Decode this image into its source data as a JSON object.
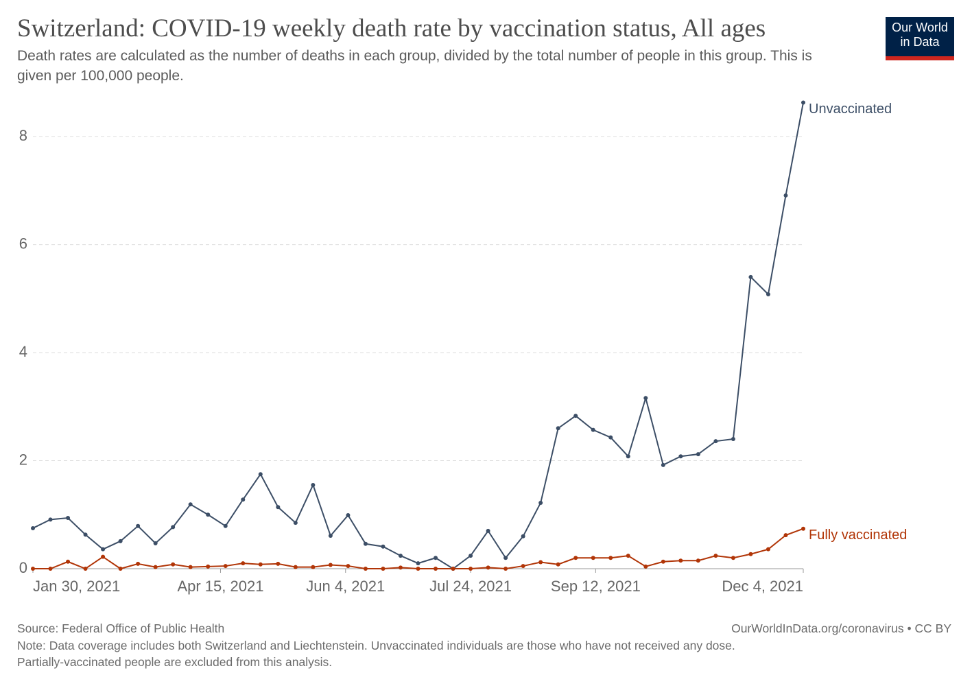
{
  "chart_data": {
    "type": "line",
    "title": "Switzerland: COVID-19 weekly death rate by vaccination status, All ages",
    "subtitle": "Death rates are calculated as the number of deaths in each group, divided by the total number of people in this group. This is given per 100,000 people.",
    "logo": [
      "Our World",
      "in Data"
    ],
    "source": "Source: Federal Office of Public Health",
    "credit": "OurWorldInData.org/coronavirus • CC BY",
    "note": [
      "Note: Data coverage includes both Switzerland and Liechtenstein. Unvaccinated individuals are those who have not received any dose.",
      "Partially-vaccinated people are excluded from this analysis."
    ],
    "x": [
      "2021-01-30",
      "2021-02-06",
      "2021-02-13",
      "2021-02-20",
      "2021-02-27",
      "2021-03-06",
      "2021-03-13",
      "2021-03-20",
      "2021-03-27",
      "2021-04-03",
      "2021-04-10",
      "2021-04-17",
      "2021-04-24",
      "2021-05-01",
      "2021-05-08",
      "2021-05-15",
      "2021-05-22",
      "2021-05-29",
      "2021-06-05",
      "2021-06-12",
      "2021-06-19",
      "2021-06-26",
      "2021-07-03",
      "2021-07-10",
      "2021-07-17",
      "2021-07-24",
      "2021-07-31",
      "2021-08-07",
      "2021-08-14",
      "2021-08-21",
      "2021-08-28",
      "2021-09-04",
      "2021-09-11",
      "2021-09-18",
      "2021-09-25",
      "2021-10-02",
      "2021-10-09",
      "2021-10-16",
      "2021-10-23",
      "2021-10-30",
      "2021-11-06",
      "2021-11-13",
      "2021-11-20",
      "2021-11-27",
      "2021-12-04"
    ],
    "xlim": [
      "2021-01-30",
      "2021-12-04"
    ],
    "xticks": [
      {
        "value": "2021-01-30",
        "label": "Jan 30, 2021"
      },
      {
        "value": "2021-04-15",
        "label": "Apr 15, 2021"
      },
      {
        "value": "2021-06-04",
        "label": "Jun 4, 2021"
      },
      {
        "value": "2021-07-24",
        "label": "Jul 24, 2021"
      },
      {
        "value": "2021-09-12",
        "label": "Sep 12, 2021"
      },
      {
        "value": "2021-12-04",
        "label": "Dec 4, 2021"
      }
    ],
    "ylim": [
      0,
      8.7
    ],
    "yticks": [
      0,
      2,
      4,
      6,
      8
    ],
    "grid": true,
    "series": [
      {
        "name": "Unvaccinated",
        "color": "#3c4e66",
        "values": [
          0.75,
          0.91,
          0.94,
          0.63,
          0.36,
          0.51,
          0.79,
          0.47,
          0.77,
          1.19,
          1.0,
          0.79,
          1.28,
          1.75,
          1.14,
          0.85,
          1.55,
          0.61,
          0.99,
          0.46,
          0.41,
          0.24,
          0.1,
          0.2,
          0.0,
          0.24,
          0.7,
          0.2,
          0.6,
          1.22,
          2.6,
          2.83,
          2.57,
          2.43,
          2.08,
          3.16,
          1.92,
          2.08,
          2.12,
          2.36,
          2.4,
          5.4,
          5.08,
          6.91,
          8.63
        ]
      },
      {
        "name": "Fully vaccinated",
        "color": "#b13507",
        "values": [
          0,
          0,
          0.13,
          0,
          0.22,
          0,
          0.09,
          0.03,
          0.08,
          0.03,
          0.04,
          0.05,
          0.1,
          0.08,
          0.09,
          0.03,
          0.03,
          0.07,
          0.05,
          0,
          0,
          0.02,
          0,
          0,
          0,
          0,
          0.02,
          0,
          0.05,
          0.12,
          0.08,
          0.2,
          0.2,
          0.2,
          0.24,
          0.04,
          0.13,
          0.15,
          0.15,
          0.24,
          0.2,
          0.27,
          0.36,
          0.62,
          0.74
        ]
      }
    ]
  }
}
